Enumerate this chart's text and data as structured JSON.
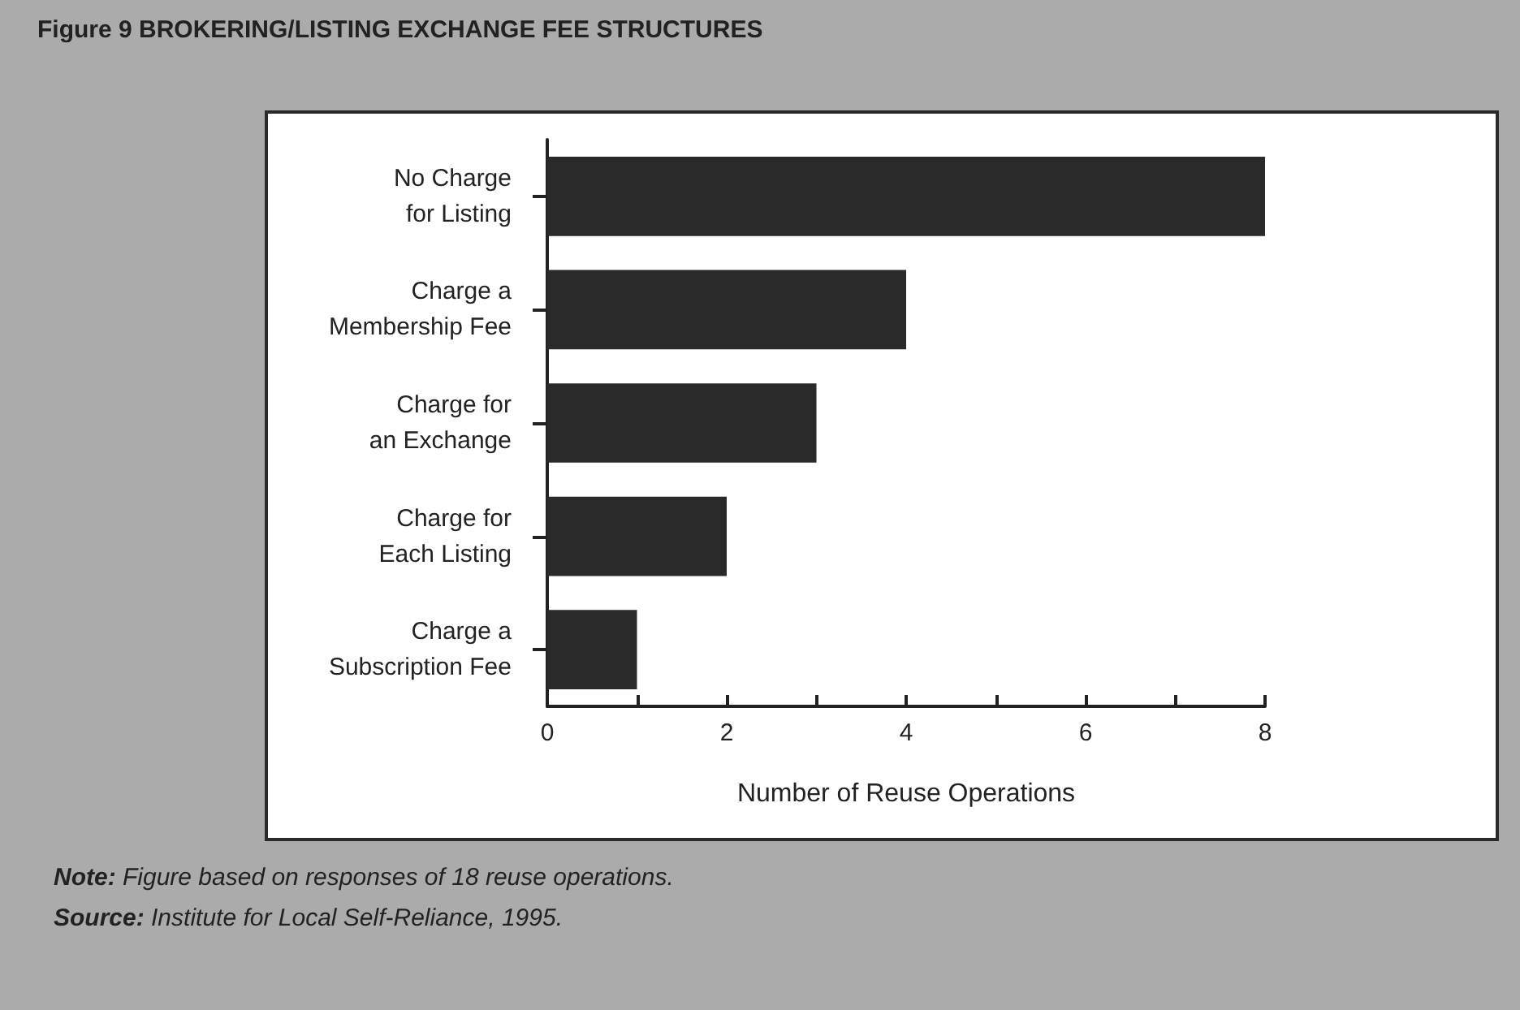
{
  "chart_data": {
    "type": "bar",
    "orientation": "horizontal",
    "title": "Figure 9 BROKERING/LISTING EXCHANGE FEE STRUCTURES",
    "categories": [
      "No Charge\nfor Listing",
      "Charge a\nMembership Fee",
      "Charge for\nan Exchange",
      "Charge for\nEach Listing",
      "Charge a\nSubscription Fee"
    ],
    "values": [
      8,
      4,
      3,
      2,
      1
    ],
    "color": "#2a2a2a",
    "xlabel": "Number of Reuse Operations",
    "xlim": [
      0,
      8
    ],
    "xticks": [
      0,
      {
        "value": 1,
        "label": null
      },
      2,
      {
        "value": 3,
        "label": null
      },
      4,
      {
        "value": 5,
        "label": null
      },
      6,
      {
        "value": 7,
        "label": null
      },
      8
    ],
    "annotations": [
      "Note: Figure based on responses of 18 reuse operations.",
      "Source: Institute for Local Self-Reliance, 1995."
    ]
  }
}
